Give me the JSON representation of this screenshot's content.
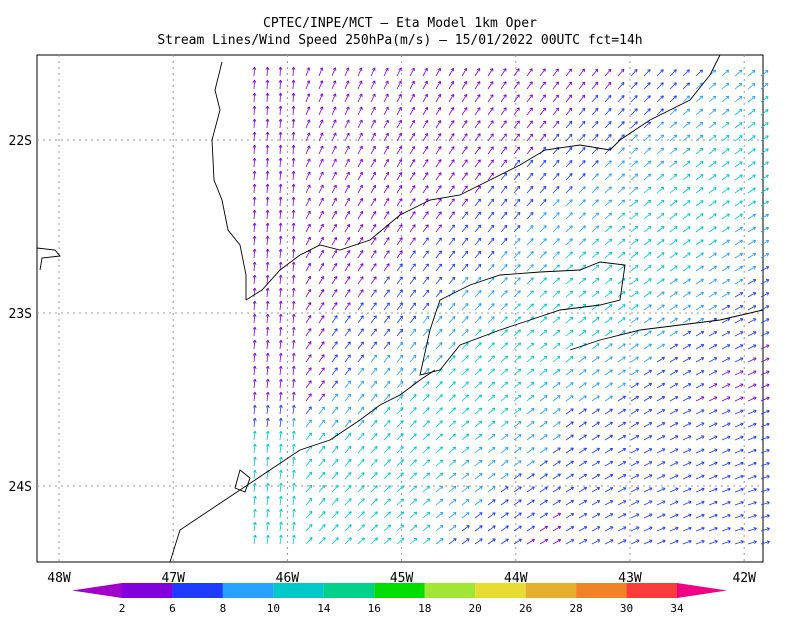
{
  "header": {
    "title": "CPTEC/INPE/MCT —  Eta Model 1km Oper",
    "subtitle": "Stream Lines/Wind Speed 250hPa(m/s) — 15/01/2022 00UTC fct=14h"
  },
  "map": {
    "lat_labels": [
      "22S",
      "23S",
      "24S"
    ],
    "lon_labels": [
      "48W",
      "47W",
      "46W",
      "45W",
      "44W",
      "43W",
      "42W"
    ]
  },
  "colorbar": {
    "labels": [
      2,
      6,
      8,
      10,
      14,
      16,
      18,
      20,
      26,
      28,
      30,
      34
    ],
    "colors": [
      "#a000c8",
      "#8200dc",
      "#1e3cff",
      "#28a0ff",
      "#00c8c8",
      "#00d28c",
      "#00dc00",
      "#a0e632",
      "#e6dc32",
      "#e6af2d",
      "#f08228",
      "#fa3c3c",
      "#f00082"
    ]
  }
}
